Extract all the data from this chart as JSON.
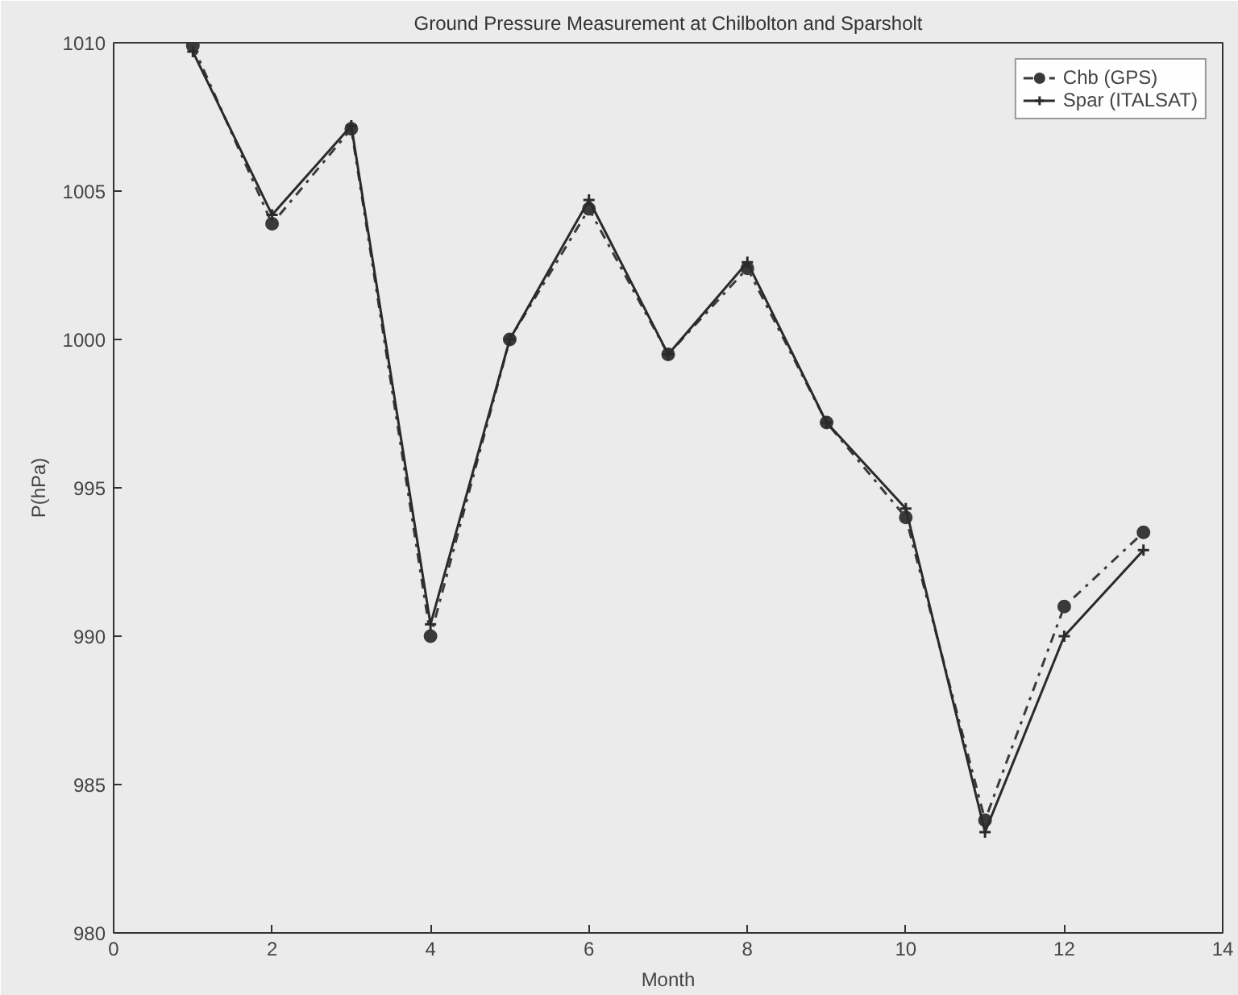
{
  "chart_data": {
    "type": "line",
    "title": "Ground Pressure Measurement at Chilbolton and Sparsholt",
    "xlabel": "Month",
    "ylabel": "P(hPa)",
    "x": [
      1,
      2,
      3,
      4,
      5,
      6,
      7,
      8,
      9,
      10,
      11,
      12,
      13
    ],
    "series": [
      {
        "name": "Chb (GPS)",
        "color": "#3a3a3a",
        "marker": "circle",
        "line_style": "dashdot",
        "values": [
          1009.9,
          1003.9,
          1007.1,
          990.0,
          1000.0,
          1004.4,
          999.5,
          1002.4,
          997.2,
          994.0,
          983.8,
          991.0,
          993.5
        ]
      },
      {
        "name": "Spar (ITALSAT)",
        "color": "#2a2a2a",
        "marker": "cross",
        "line_style": "solid",
        "values": [
          1009.7,
          1004.2,
          1007.2,
          990.4,
          1000.0,
          1004.7,
          999.5,
          1002.6,
          997.2,
          994.3,
          983.4,
          990.0,
          992.9
        ]
      }
    ],
    "xlim": [
      0,
      14
    ],
    "xticks": [
      0,
      2,
      4,
      6,
      8,
      10,
      12,
      14
    ],
    "ylim": [
      980,
      1010
    ],
    "yticks": [
      980,
      985,
      990,
      995,
      1000,
      1005,
      1010
    ],
    "grid": false,
    "legend": "top right"
  }
}
